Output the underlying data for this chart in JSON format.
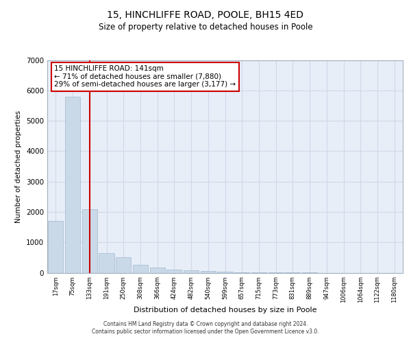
{
  "title1": "15, HINCHLIFFE ROAD, POOLE, BH15 4ED",
  "title2": "Size of property relative to detached houses in Poole",
  "xlabel": "Distribution of detached houses by size in Poole",
  "ylabel": "Number of detached properties",
  "bar_labels": [
    "17sqm",
    "75sqm",
    "133sqm",
    "191sqm",
    "250sqm",
    "308sqm",
    "366sqm",
    "424sqm",
    "482sqm",
    "540sqm",
    "599sqm",
    "657sqm",
    "715sqm",
    "773sqm",
    "831sqm",
    "889sqm",
    "947sqm",
    "1006sqm",
    "1064sqm",
    "1122sqm",
    "1180sqm"
  ],
  "bar_values": [
    1700,
    5800,
    2100,
    650,
    500,
    250,
    175,
    100,
    75,
    50,
    25,
    10,
    5,
    2,
    1,
    1,
    0,
    0,
    0,
    0,
    0
  ],
  "bar_color": "#c9d9e8",
  "bar_edge_color": "#a0b8cc",
  "property_line_x": 2,
  "property_line_color": "#cc0000",
  "annotation_text": "15 HINCHLIFFE ROAD: 141sqm\n← 71% of detached houses are smaller (7,880)\n29% of semi-detached houses are larger (3,177) →",
  "annotation_box_color": "#ffffff",
  "annotation_box_edge": "#cc0000",
  "ylim": [
    0,
    7000
  ],
  "yticks": [
    0,
    1000,
    2000,
    3000,
    4000,
    5000,
    6000,
    7000
  ],
  "grid_color": "#d0d8e8",
  "bg_color": "#e8eef8",
  "footer1": "Contains HM Land Registry data © Crown copyright and database right 2024.",
  "footer2": "Contains public sector information licensed under the Open Government Licence v3.0."
}
